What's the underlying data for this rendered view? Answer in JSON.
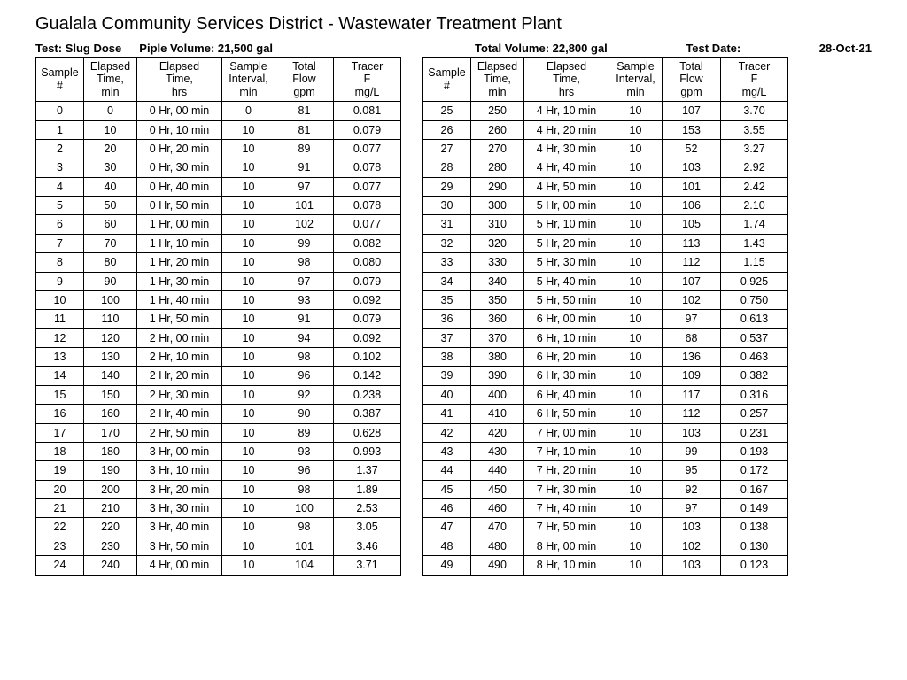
{
  "title": "Gualala Community Services District - Wastewater Treatment Plant",
  "meta": {
    "test_label": "Test: Slug Dose",
    "pipe_volume_label": "Piple Volume: 21,500 gal",
    "total_volume_label": "Total Volume: 22,800 gal",
    "test_date_label": "Test Date:",
    "test_date_value": "28-Oct-21"
  },
  "headers": {
    "sample": [
      "Sample",
      "#"
    ],
    "etmin": [
      "Elapsed",
      "Time,",
      "min"
    ],
    "ethr": [
      "Elapsed",
      "Time,",
      "hrs"
    ],
    "interval": [
      "Sample",
      "Interval,",
      "min"
    ],
    "flow": [
      "Total",
      "Flow",
      "gpm"
    ],
    "tracer": [
      "Tracer",
      "F",
      "mg/L"
    ]
  },
  "colwidths": {
    "sample": 54,
    "etmin": 60,
    "ethr": 96,
    "interval": 60,
    "flow": 66,
    "tracer": 76
  },
  "style": {
    "font_family": "Arial",
    "title_fontsize": 20,
    "meta_fontsize": 13,
    "cell_fontsize": 12.5,
    "border_color": "#000000",
    "background": "#ffffff",
    "text_color": "#000000"
  },
  "left_rows": [
    [
      "0",
      "0",
      "0 Hr, 00 min",
      "0",
      "81",
      "0.081"
    ],
    [
      "1",
      "10",
      "0 Hr, 10 min",
      "10",
      "81",
      "0.079"
    ],
    [
      "2",
      "20",
      "0 Hr, 20 min",
      "10",
      "89",
      "0.077"
    ],
    [
      "3",
      "30",
      "0 Hr, 30 min",
      "10",
      "91",
      "0.078"
    ],
    [
      "4",
      "40",
      "0 Hr, 40 min",
      "10",
      "97",
      "0.077"
    ],
    [
      "5",
      "50",
      "0 Hr, 50 min",
      "10",
      "101",
      "0.078"
    ],
    [
      "6",
      "60",
      "1 Hr, 00 min",
      "10",
      "102",
      "0.077"
    ],
    [
      "7",
      "70",
      "1 Hr, 10 min",
      "10",
      "99",
      "0.082"
    ],
    [
      "8",
      "80",
      "1 Hr, 20 min",
      "10",
      "98",
      "0.080"
    ],
    [
      "9",
      "90",
      "1 Hr, 30 min",
      "10",
      "97",
      "0.079"
    ],
    [
      "10",
      "100",
      "1 Hr, 40 min",
      "10",
      "93",
      "0.092"
    ],
    [
      "11",
      "110",
      "1 Hr, 50 min",
      "10",
      "91",
      "0.079"
    ],
    [
      "12",
      "120",
      "2 Hr, 00 min",
      "10",
      "94",
      "0.092"
    ],
    [
      "13",
      "130",
      "2 Hr, 10 min",
      "10",
      "98",
      "0.102"
    ],
    [
      "14",
      "140",
      "2 Hr, 20 min",
      "10",
      "96",
      "0.142"
    ],
    [
      "15",
      "150",
      "2 Hr, 30 min",
      "10",
      "92",
      "0.238"
    ],
    [
      "16",
      "160",
      "2 Hr, 40 min",
      "10",
      "90",
      "0.387"
    ],
    [
      "17",
      "170",
      "2 Hr, 50 min",
      "10",
      "89",
      "0.628"
    ],
    [
      "18",
      "180",
      "3 Hr, 00 min",
      "10",
      "93",
      "0.993"
    ],
    [
      "19",
      "190",
      "3 Hr, 10 min",
      "10",
      "96",
      "1.37"
    ],
    [
      "20",
      "200",
      "3 Hr, 20 min",
      "10",
      "98",
      "1.89"
    ],
    [
      "21",
      "210",
      "3 Hr, 30 min",
      "10",
      "100",
      "2.53"
    ],
    [
      "22",
      "220",
      "3 Hr, 40 min",
      "10",
      "98",
      "3.05"
    ],
    [
      "23",
      "230",
      "3 Hr, 50 min",
      "10",
      "101",
      "3.46"
    ],
    [
      "24",
      "240",
      "4 Hr, 00 min",
      "10",
      "104",
      "3.71"
    ]
  ],
  "right_rows": [
    [
      "25",
      "250",
      "4 Hr, 10 min",
      "10",
      "107",
      "3.70"
    ],
    [
      "26",
      "260",
      "4 Hr, 20 min",
      "10",
      "153",
      "3.55"
    ],
    [
      "27",
      "270",
      "4 Hr, 30 min",
      "10",
      "52",
      "3.27"
    ],
    [
      "28",
      "280",
      "4 Hr, 40 min",
      "10",
      "103",
      "2.92"
    ],
    [
      "29",
      "290",
      "4 Hr, 50 min",
      "10",
      "101",
      "2.42"
    ],
    [
      "30",
      "300",
      "5 Hr, 00 min",
      "10",
      "106",
      "2.10"
    ],
    [
      "31",
      "310",
      "5 Hr, 10 min",
      "10",
      "105",
      "1.74"
    ],
    [
      "32",
      "320",
      "5 Hr, 20 min",
      "10",
      "113",
      "1.43"
    ],
    [
      "33",
      "330",
      "5 Hr, 30 min",
      "10",
      "112",
      "1.15"
    ],
    [
      "34",
      "340",
      "5 Hr, 40 min",
      "10",
      "107",
      "0.925"
    ],
    [
      "35",
      "350",
      "5 Hr, 50 min",
      "10",
      "102",
      "0.750"
    ],
    [
      "36",
      "360",
      "6 Hr, 00 min",
      "10",
      "97",
      "0.613"
    ],
    [
      "37",
      "370",
      "6 Hr, 10 min",
      "10",
      "68",
      "0.537"
    ],
    [
      "38",
      "380",
      "6 Hr, 20 min",
      "10",
      "136",
      "0.463"
    ],
    [
      "39",
      "390",
      "6 Hr, 30 min",
      "10",
      "109",
      "0.382"
    ],
    [
      "40",
      "400",
      "6 Hr, 40 min",
      "10",
      "117",
      "0.316"
    ],
    [
      "41",
      "410",
      "6 Hr, 50 min",
      "10",
      "112",
      "0.257"
    ],
    [
      "42",
      "420",
      "7 Hr, 00 min",
      "10",
      "103",
      "0.231"
    ],
    [
      "43",
      "430",
      "7 Hr, 10 min",
      "10",
      "99",
      "0.193"
    ],
    [
      "44",
      "440",
      "7 Hr, 20 min",
      "10",
      "95",
      "0.172"
    ],
    [
      "45",
      "450",
      "7 Hr, 30 min",
      "10",
      "92",
      "0.167"
    ],
    [
      "46",
      "460",
      "7 Hr, 40 min",
      "10",
      "97",
      "0.149"
    ],
    [
      "47",
      "470",
      "7 Hr, 50 min",
      "10",
      "103",
      "0.138"
    ],
    [
      "48",
      "480",
      "8 Hr, 00 min",
      "10",
      "102",
      "0.130"
    ],
    [
      "49",
      "490",
      "8 Hr, 10 min",
      "10",
      "103",
      "0.123"
    ]
  ]
}
